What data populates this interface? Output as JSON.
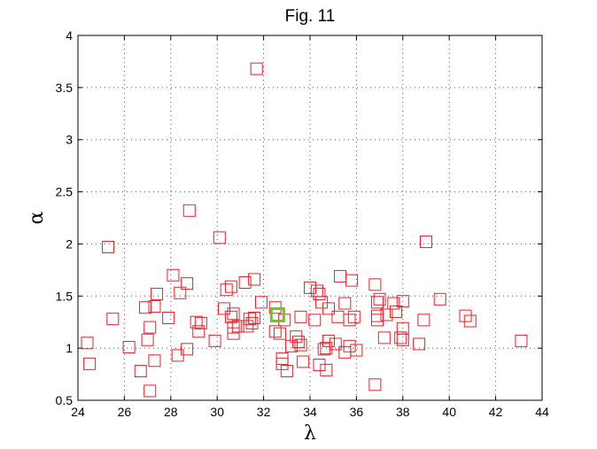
{
  "chart_data": {
    "type": "scatter",
    "title": "Fig. 11",
    "xlabel": "λ",
    "ylabel": "α",
    "xlim": [
      24,
      44
    ],
    "ylim": [
      0.5,
      4
    ],
    "xticks": [
      "24",
      "26",
      "28",
      "30",
      "32",
      "34",
      "36",
      "38",
      "40",
      "42",
      "44"
    ],
    "yticks": [
      "0.5",
      "1",
      "1.5",
      "2",
      "2.5",
      "3",
      "3.5",
      "4"
    ],
    "grid": true,
    "colors": {
      "main": "#e8202a",
      "highlight": "#66cc11"
    },
    "series": [
      {
        "marker": "square",
        "points": [
          [
            24.4,
            1.05
          ],
          [
            24.5,
            0.85
          ],
          [
            25.3,
            1.97
          ],
          [
            25.5,
            1.28
          ],
          [
            26.2,
            1.01
          ],
          [
            26.7,
            0.78
          ],
          [
            26.9,
            1.39
          ],
          [
            27.0,
            1.08
          ],
          [
            27.1,
            0.59
          ],
          [
            27.1,
            1.2
          ],
          [
            27.3,
            1.4
          ],
          [
            27.3,
            0.88
          ],
          [
            27.4,
            1.52
          ],
          [
            27.9,
            1.29
          ],
          [
            28.1,
            1.7
          ],
          [
            28.3,
            0.93
          ],
          [
            28.4,
            1.53
          ],
          [
            28.7,
            1.62
          ],
          [
            28.7,
            0.99
          ],
          [
            28.8,
            2.32
          ],
          [
            29.1,
            1.25
          ],
          [
            29.2,
            1.16
          ],
          [
            29.3,
            1.24
          ],
          [
            29.9,
            1.07
          ],
          [
            30.1,
            2.06
          ],
          [
            30.3,
            1.38
          ],
          [
            30.4,
            1.56
          ],
          [
            30.6,
            1.59
          ],
          [
            30.6,
            1.3
          ],
          [
            30.7,
            1.2
          ],
          [
            30.7,
            1.14
          ],
          [
            30.7,
            1.33
          ],
          [
            30.9,
            1.21
          ],
          [
            31.2,
            1.63
          ],
          [
            31.3,
            1.21
          ],
          [
            31.4,
            1.28
          ],
          [
            31.5,
            1.24
          ],
          [
            31.6,
            1.66
          ],
          [
            31.6,
            1.29
          ],
          [
            31.7,
            3.68
          ],
          [
            31.9,
            1.44
          ],
          [
            32.5,
            1.39
          ],
          [
            32.5,
            1.16
          ],
          [
            32.7,
            1.14
          ],
          [
            32.8,
            0.9
          ],
          [
            32.8,
            0.85
          ],
          [
            32.9,
            1.27
          ],
          [
            33.0,
            0.78
          ],
          [
            33.2,
            1.02
          ],
          [
            33.4,
            1.11
          ],
          [
            33.5,
            1.06
          ],
          [
            33.6,
            1.3
          ],
          [
            33.6,
            1.03
          ],
          [
            33.7,
            0.87
          ],
          [
            34.0,
            1.58
          ],
          [
            34.2,
            1.27
          ],
          [
            34.3,
            1.55
          ],
          [
            34.4,
            1.52
          ],
          [
            34.4,
            0.84
          ],
          [
            34.5,
            1.44
          ],
          [
            34.6,
            0.99
          ],
          [
            34.7,
            0.79
          ],
          [
            34.7,
            1.0
          ],
          [
            34.8,
            1.38
          ],
          [
            34.8,
            1.07
          ],
          [
            35.1,
            1.04
          ],
          [
            35.2,
            1.3
          ],
          [
            35.3,
            1.69
          ],
          [
            35.5,
            1.43
          ],
          [
            35.5,
            0.96
          ],
          [
            35.7,
            1.27
          ],
          [
            35.7,
            1.02
          ],
          [
            35.8,
            1.65
          ],
          [
            35.9,
            1.3
          ],
          [
            36.0,
            0.98
          ],
          [
            36.8,
            1.61
          ],
          [
            36.8,
            0.65
          ],
          [
            36.9,
            1.44
          ],
          [
            36.9,
            1.31
          ],
          [
            36.9,
            1.27
          ],
          [
            37.0,
            1.47
          ],
          [
            37.2,
            1.1
          ],
          [
            37.3,
            1.32
          ],
          [
            37.6,
            1.43
          ],
          [
            37.7,
            1.35
          ],
          [
            37.9,
            1.1
          ],
          [
            38.0,
            1.45
          ],
          [
            38.0,
            1.19
          ],
          [
            38.0,
            1.08
          ],
          [
            38.7,
            1.04
          ],
          [
            38.9,
            1.27
          ],
          [
            39.0,
            2.02
          ],
          [
            39.6,
            1.47
          ],
          [
            40.7,
            1.31
          ],
          [
            40.9,
            1.26
          ],
          [
            43.1,
            1.07
          ]
        ]
      },
      {
        "marker": "square",
        "points": [
          [
            32.6,
            1.32
          ]
        ]
      }
    ]
  }
}
